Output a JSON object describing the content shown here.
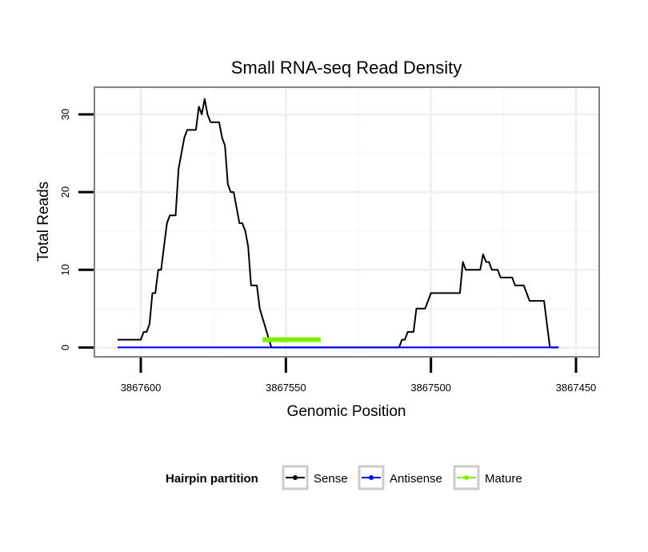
{
  "chart_data": {
    "type": "line",
    "title": "Small RNA-seq Read Density",
    "xlabel": "Genomic Position",
    "ylabel": "Total Reads",
    "x_reversed": true,
    "xlim": [
      3867616,
      3867442
    ],
    "ylim": [
      -1.2,
      33.5
    ],
    "x_ticks": [
      3867600,
      3867550,
      3867500,
      3867450
    ],
    "x_tick_labels": [
      "3867600",
      "3867550",
      "3867500",
      "3867450"
    ],
    "y_ticks": [
      0,
      10,
      20,
      30
    ],
    "y_tick_labels": [
      "0",
      "10",
      "20",
      "30"
    ],
    "grid": true,
    "legend": {
      "title": "Hairpin partition",
      "position": "bottom",
      "entries": [
        "Sense",
        "Antisense",
        "Mature"
      ]
    },
    "series": [
      {
        "name": "Sense",
        "color": "#000000",
        "x": [
          3867608,
          3867600,
          3867599,
          3867598,
          3867597,
          3867596,
          3867595,
          3867594,
          3867593,
          3867592,
          3867591,
          3867590,
          3867589,
          3867588,
          3867587,
          3867586,
          3867585,
          3867584,
          3867583,
          3867582,
          3867581,
          3867580,
          3867579,
          3867578,
          3867577,
          3867576,
          3867575,
          3867574,
          3867573,
          3867572,
          3867571,
          3867570,
          3867569,
          3867568,
          3867567,
          3867566,
          3867565,
          3867564,
          3867563,
          3867562,
          3867561,
          3867560,
          3867559,
          3867555,
          3867554,
          3867553,
          3867537,
          3867536,
          3867535,
          3867511,
          3867510,
          3867509,
          3867508,
          3867507,
          3867506,
          3867505,
          3867504,
          3867503,
          3867502,
          3867501,
          3867500,
          3867499,
          3867498,
          3867497,
          3867496,
          3867495,
          3867494,
          3867493,
          3867490,
          3867489,
          3867488,
          3867487,
          3867486,
          3867485,
          3867484,
          3867483,
          3867482,
          3867481,
          3867480,
          3867479,
          3867478,
          3867477,
          3867476,
          3867474,
          3867473,
          3867472,
          3867471,
          3867470,
          3867469,
          3867468,
          3867467,
          3867466,
          3867465,
          3867464,
          3867463,
          3867462,
          3867461,
          3867460,
          3867459,
          3867458,
          3867457,
          3867456
        ],
        "y": [
          1,
          1,
          2,
          2,
          3,
          7,
          7,
          10,
          10,
          13,
          16,
          17,
          17,
          17,
          23,
          25,
          27,
          28,
          28,
          28,
          28,
          31,
          30,
          32,
          30,
          29,
          29,
          29,
          29,
          27,
          26,
          21,
          20,
          20,
          18,
          16,
          16,
          15,
          13,
          8,
          8,
          8,
          5,
          0,
          0,
          0,
          0,
          0,
          0,
          0,
          1,
          1,
          2,
          2,
          2,
          5,
          5,
          5,
          5,
          6,
          7,
          7,
          7,
          7,
          7,
          7,
          7,
          7,
          7,
          11,
          10,
          10,
          10,
          10,
          10,
          10,
          12,
          11,
          11,
          10,
          10,
          10,
          9,
          9,
          9,
          9,
          8,
          8,
          8,
          8,
          7,
          6,
          6,
          6,
          6,
          6,
          6,
          3,
          0,
          0,
          0,
          0
        ]
      },
      {
        "name": "Antisense",
        "color": "#0000ff",
        "x": [
          3867608,
          3867456
        ],
        "y": [
          0,
          0
        ]
      },
      {
        "name": "Mature",
        "color": "#80ee00",
        "x": [
          3867558,
          3867538
        ],
        "y": [
          1,
          1
        ]
      }
    ]
  }
}
